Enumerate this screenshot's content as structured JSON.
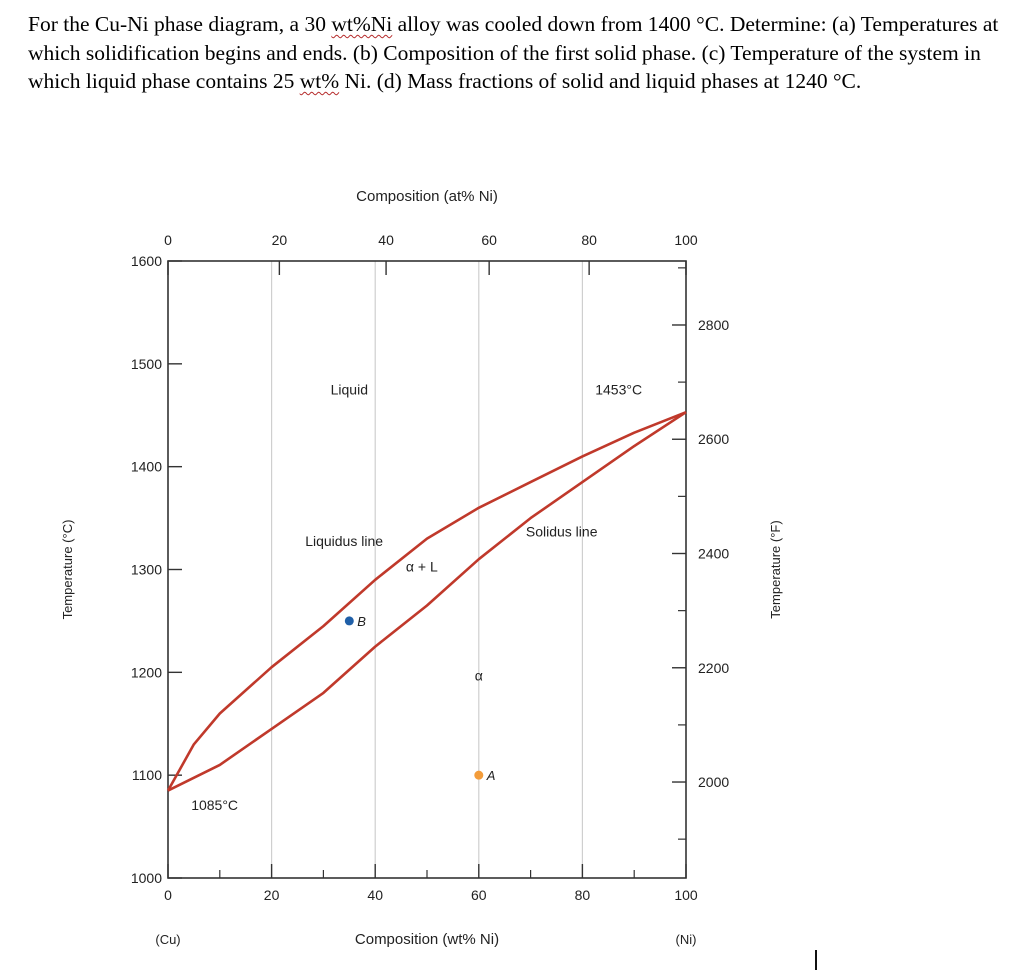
{
  "question": {
    "p1": "For the Cu-Ni phase diagram, a 30 ",
    "u1": "wt%Ni",
    "p2": " alloy was cooled down from 1400 °C. Determine: (a) Temperatures at which solidification begins and ends. (b) Composition of the first solid phase. (c) Temperature of the system in which liquid phase contains 25 ",
    "u2": "wt%",
    "p3": " Ni. (d) Mass fractions of solid and liquid phases at 1240 °C."
  },
  "chart_data": {
    "type": "line",
    "title": "",
    "xlabel": "Composition (wt% Ni)",
    "x2label": "Composition (at% Ni)",
    "ylabel": "Temperature (°C)",
    "y2label": "Temperature (°F)",
    "xlim": [
      0,
      100
    ],
    "ylim": [
      1000,
      1600
    ],
    "x_ticks": [
      0,
      20,
      40,
      60,
      80,
      100
    ],
    "x_tick_labels": [
      "0",
      "20",
      "40",
      "60",
      "80",
      "100"
    ],
    "x_end_labels": [
      "(Cu)",
      "(Ni)"
    ],
    "x2_ticks": [
      0,
      21.5,
      42.1,
      62,
      81.3,
      100
    ],
    "x2_tick_labels": [
      "0",
      "20",
      "40",
      "60",
      "80",
      "100"
    ],
    "y_ticks": [
      1000,
      1100,
      1200,
      1300,
      1400,
      1500,
      1600
    ],
    "y_tick_labels": [
      "1000",
      "1100",
      "1200",
      "1300",
      "1400",
      "1500",
      "1600"
    ],
    "y2_ticks_F": [
      2000,
      2200,
      2400,
      2600,
      2800
    ],
    "y2_tick_labels": [
      "2000",
      "2200",
      "2400",
      "2600",
      "2800"
    ],
    "grid": true,
    "line_color": "#c0392b",
    "series": [
      {
        "name": "Liquidus line",
        "x": [
          0,
          5,
          10,
          20,
          30,
          40,
          50,
          60,
          70,
          80,
          90,
          100
        ],
        "y": [
          1085,
          1130,
          1160,
          1205,
          1245,
          1290,
          1330,
          1360,
          1385,
          1410,
          1433,
          1453
        ]
      },
      {
        "name": "Solidus line",
        "x": [
          0,
          10,
          20,
          30,
          40,
          50,
          60,
          70,
          80,
          90,
          100
        ],
        "y": [
          1085,
          1110,
          1145,
          1180,
          1225,
          1265,
          1310,
          1350,
          1385,
          1420,
          1453
        ]
      }
    ],
    "points": [
      {
        "label": "B",
        "x": 35,
        "y": 1250,
        "color": "#1f5fa8"
      },
      {
        "label": "A",
        "x": 60,
        "y": 1100,
        "color": "#f39c3a"
      }
    ],
    "annotations": [
      {
        "text": "Liquid",
        "x": 35,
        "y": 1470
      },
      {
        "text": "1453°C",
        "x": 87,
        "y": 1470
      },
      {
        "text": "Liquidus line",
        "x": 34,
        "y": 1323
      },
      {
        "text": "Solidus line",
        "x": 76,
        "y": 1332
      },
      {
        "text": "α + L",
        "x": 49,
        "y": 1298
      },
      {
        "text": "α",
        "x": 60,
        "y": 1192
      },
      {
        "text": "1085°C",
        "x": 9,
        "y": 1066
      }
    ]
  }
}
